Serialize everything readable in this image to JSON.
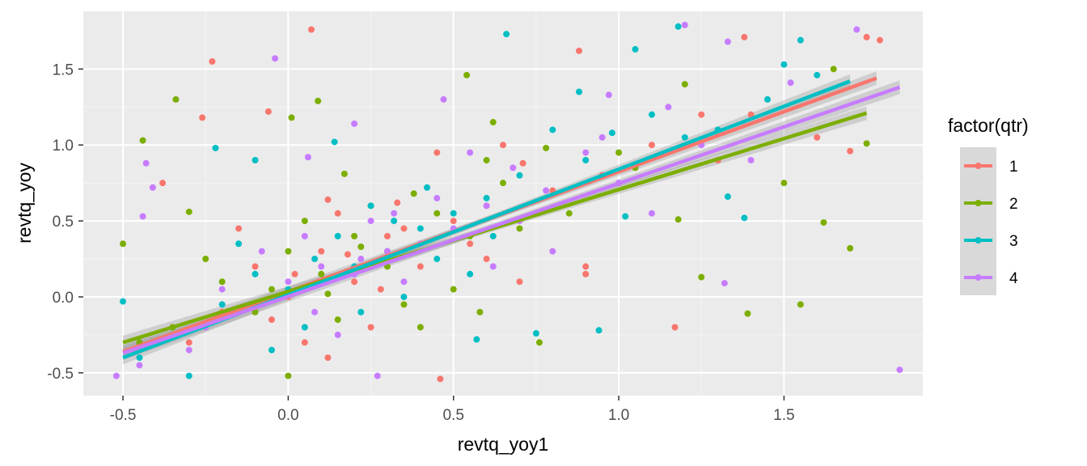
{
  "chart_data": {
    "type": "scatter",
    "title": "",
    "xlabel": "revtq_yoy1",
    "ylabel": "revtq_yoy",
    "xlim": [
      -0.62,
      1.92
    ],
    "ylim": [
      -0.65,
      1.88
    ],
    "x_ticks": [
      -0.5,
      0.0,
      0.5,
      1.0,
      1.5
    ],
    "x_tick_labels": [
      "-0.5",
      "0.0",
      "0.5",
      "1.0",
      "1.5"
    ],
    "y_ticks": [
      -0.5,
      0.0,
      0.5,
      1.0,
      1.5
    ],
    "y_tick_labels": [
      "-0.5",
      "0.0",
      "0.5",
      "1.0",
      "1.5"
    ],
    "grid": true,
    "legend": {
      "title": "factor(qtr)",
      "position": "right"
    },
    "series": [
      {
        "name": "1",
        "color": "#F8766D",
        "fit": {
          "x": [
            -0.5,
            1.78
          ],
          "y": [
            -0.36,
            1.44
          ]
        },
        "points": [
          [
            0.07,
            1.76
          ],
          [
            -0.23,
            1.55
          ],
          [
            -0.26,
            1.18
          ],
          [
            0.88,
            1.62
          ],
          [
            1.38,
            1.71
          ],
          [
            1.75,
            1.71
          ],
          [
            1.79,
            1.69
          ],
          [
            1.17,
            -0.2
          ],
          [
            0.46,
            -0.54
          ],
          [
            -0.38,
            0.75
          ],
          [
            -0.06,
            1.22
          ],
          [
            0.12,
            0.64
          ],
          [
            0.45,
            0.95
          ],
          [
            0.71,
            0.88
          ],
          [
            0.95,
            0.8
          ],
          [
            1.1,
            1.0
          ],
          [
            1.3,
            0.9
          ],
          [
            1.4,
            1.2
          ],
          [
            0.3,
            0.4
          ],
          [
            0.2,
            0.1
          ],
          [
            0.1,
            0.3
          ],
          [
            0.0,
            0.0
          ],
          [
            -0.1,
            0.2
          ],
          [
            -0.2,
            -0.1
          ],
          [
            0.5,
            0.5
          ],
          [
            0.6,
            0.6
          ],
          [
            0.25,
            -0.2
          ],
          [
            0.35,
            0.45
          ],
          [
            -0.3,
            -0.3
          ],
          [
            -0.45,
            -0.35
          ],
          [
            0.55,
            0.35
          ],
          [
            0.8,
            0.7
          ],
          [
            0.65,
            1.0
          ],
          [
            0.15,
            0.55
          ],
          [
            -0.15,
            0.45
          ],
          [
            0.05,
            -0.3
          ],
          [
            0.4,
            0.2
          ],
          [
            0.7,
            0.1
          ],
          [
            0.9,
            0.2
          ],
          [
            1.25,
            1.2
          ],
          [
            1.6,
            1.05
          ],
          [
            1.7,
            0.96
          ],
          [
            0.02,
            0.15
          ],
          [
            0.18,
            0.28
          ],
          [
            0.33,
            0.62
          ],
          [
            -0.05,
            -0.15
          ],
          [
            0.6,
            0.25
          ],
          [
            0.28,
            0.05
          ],
          [
            0.12,
            -0.4
          ],
          [
            0.9,
            0.15
          ]
        ]
      },
      {
        "name": "2",
        "color": "#7CAE00",
        "fit": {
          "x": [
            -0.5,
            1.75
          ],
          "y": [
            -0.3,
            1.21
          ]
        },
        "points": [
          [
            -0.5,
            0.35
          ],
          [
            -0.44,
            1.03
          ],
          [
            -0.34,
            1.3
          ],
          [
            0.01,
            1.18
          ],
          [
            0.09,
            1.29
          ],
          [
            0.54,
            1.46
          ],
          [
            1.65,
            1.5
          ],
          [
            1.75,
            1.01
          ],
          [
            1.7,
            0.32
          ],
          [
            1.62,
            0.49
          ],
          [
            1.55,
            -0.05
          ],
          [
            1.39,
            -0.11
          ],
          [
            1.25,
            0.13
          ],
          [
            1.18,
            0.51
          ],
          [
            0.76,
            -0.3
          ],
          [
            0.58,
            -0.1
          ],
          [
            0.0,
            -0.52
          ],
          [
            -0.3,
            0.56
          ],
          [
            0.17,
            0.81
          ],
          [
            0.62,
            1.15
          ],
          [
            0.78,
            0.98
          ],
          [
            1.05,
            0.85
          ],
          [
            1.2,
            1.4
          ],
          [
            1.5,
            0.75
          ],
          [
            0.3,
            0.2
          ],
          [
            0.2,
            0.4
          ],
          [
            0.1,
            0.15
          ],
          [
            0.0,
            0.3
          ],
          [
            -0.1,
            -0.1
          ],
          [
            -0.2,
            0.1
          ],
          [
            0.45,
            0.55
          ],
          [
            0.55,
            0.4
          ],
          [
            0.35,
            -0.05
          ],
          [
            0.65,
            0.75
          ],
          [
            -0.35,
            -0.2
          ],
          [
            -0.45,
            -0.3
          ],
          [
            0.05,
            0.5
          ],
          [
            0.25,
            0.6
          ],
          [
            0.4,
            -0.2
          ],
          [
            0.15,
            -0.15
          ],
          [
            -0.05,
            0.05
          ],
          [
            0.7,
            0.45
          ],
          [
            0.85,
            0.55
          ],
          [
            0.5,
            0.05
          ],
          [
            0.22,
            0.33
          ],
          [
            0.12,
            0.02
          ],
          [
            -0.25,
            0.25
          ],
          [
            0.38,
            0.68
          ],
          [
            0.6,
            0.9
          ],
          [
            1.0,
            0.95
          ]
        ]
      },
      {
        "name": "3",
        "color": "#00BFC4",
        "fit": {
          "x": [
            -0.5,
            1.7
          ],
          "y": [
            -0.4,
            1.42
          ]
        },
        "points": [
          [
            0.66,
            1.73
          ],
          [
            1.18,
            1.78
          ],
          [
            1.55,
            1.69
          ],
          [
            1.05,
            1.63
          ],
          [
            1.5,
            1.53
          ],
          [
            1.6,
            1.46
          ],
          [
            0.88,
            1.35
          ],
          [
            0.98,
            1.08
          ],
          [
            -0.22,
            0.98
          ],
          [
            -0.1,
            0.9
          ],
          [
            1.38,
            0.52
          ],
          [
            1.33,
            0.66
          ],
          [
            1.02,
            0.53
          ],
          [
            0.94,
            -0.22
          ],
          [
            0.75,
            -0.24
          ],
          [
            0.57,
            -0.28
          ],
          [
            -0.5,
            -0.03
          ],
          [
            -0.3,
            -0.52
          ],
          [
            0.14,
            1.02
          ],
          [
            0.3,
            0.3
          ],
          [
            0.2,
            0.2
          ],
          [
            0.1,
            0.1
          ],
          [
            0.0,
            0.05
          ],
          [
            -0.1,
            0.15
          ],
          [
            -0.2,
            -0.05
          ],
          [
            0.4,
            0.45
          ],
          [
            0.5,
            0.55
          ],
          [
            0.6,
            0.65
          ],
          [
            0.7,
            0.8
          ],
          [
            0.25,
            0.6
          ],
          [
            0.35,
            0.0
          ],
          [
            -0.35,
            -0.25
          ],
          [
            -0.45,
            -0.4
          ],
          [
            0.05,
            -0.2
          ],
          [
            0.15,
            0.4
          ],
          [
            0.45,
            0.25
          ],
          [
            0.55,
            0.15
          ],
          [
            0.8,
            1.1
          ],
          [
            1.1,
            1.2
          ],
          [
            1.3,
            1.1
          ],
          [
            1.45,
            1.3
          ],
          [
            0.32,
            0.5
          ],
          [
            0.08,
            0.25
          ],
          [
            -0.05,
            -0.35
          ],
          [
            0.62,
            0.4
          ],
          [
            0.22,
            -0.1
          ],
          [
            0.9,
            0.9
          ],
          [
            1.2,
            1.05
          ],
          [
            0.42,
            0.72
          ],
          [
            -0.15,
            0.35
          ]
        ]
      },
      {
        "name": "4",
        "color": "#C77CFF",
        "fit": {
          "x": [
            -0.5,
            1.85
          ],
          "y": [
            -0.37,
            1.38
          ]
        },
        "points": [
          [
            -0.04,
            1.57
          ],
          [
            1.2,
            1.79
          ],
          [
            1.72,
            1.76
          ],
          [
            1.33,
            1.68
          ],
          [
            1.52,
            1.41
          ],
          [
            0.97,
            1.33
          ],
          [
            0.2,
            1.14
          ],
          [
            0.47,
            1.3
          ],
          [
            -0.43,
            0.88
          ],
          [
            -0.41,
            0.72
          ],
          [
            -0.44,
            0.53
          ],
          [
            1.85,
            -0.48
          ],
          [
            1.32,
            0.09
          ],
          [
            0.78,
            0.7
          ],
          [
            0.9,
            0.95
          ],
          [
            1.1,
            0.55
          ],
          [
            0.27,
            -0.52
          ],
          [
            -0.52,
            -0.52
          ],
          [
            0.06,
            0.92
          ],
          [
            0.3,
            0.3
          ],
          [
            0.2,
            0.15
          ],
          [
            0.1,
            0.2
          ],
          [
            0.0,
            0.1
          ],
          [
            -0.1,
            -0.05
          ],
          [
            -0.2,
            0.05
          ],
          [
            0.4,
            0.35
          ],
          [
            0.5,
            0.45
          ],
          [
            0.6,
            0.6
          ],
          [
            0.7,
            0.5
          ],
          [
            0.25,
            0.5
          ],
          [
            0.35,
            0.1
          ],
          [
            -0.3,
            -0.35
          ],
          [
            -0.45,
            -0.45
          ],
          [
            0.05,
            0.4
          ],
          [
            0.15,
            -0.25
          ],
          [
            0.45,
            0.65
          ],
          [
            0.55,
            0.95
          ],
          [
            0.8,
            0.3
          ],
          [
            1.0,
            0.75
          ],
          [
            1.25,
            1.0
          ],
          [
            1.4,
            0.9
          ],
          [
            0.32,
            0.55
          ],
          [
            0.08,
            -0.1
          ],
          [
            -0.08,
            0.3
          ],
          [
            0.62,
            0.2
          ],
          [
            0.22,
            0.25
          ],
          [
            0.68,
            0.85
          ],
          [
            0.95,
            1.05
          ],
          [
            1.15,
            1.25
          ],
          [
            -0.25,
            -0.2
          ]
        ]
      }
    ]
  }
}
